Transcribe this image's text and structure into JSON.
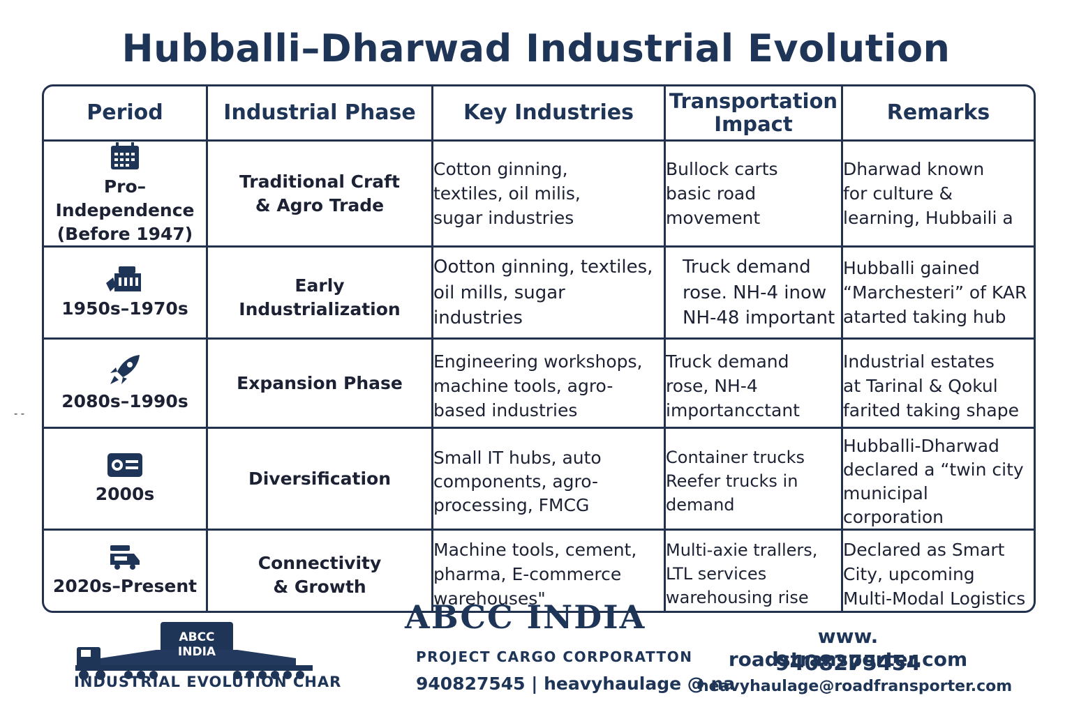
{
  "title": "Hubballi–Dharwad Industrial Evolution",
  "table": {
    "headers": [
      "Period",
      "Industrial Phase",
      "Key Industries",
      "Transportation\nImpact",
      "Remarks"
    ],
    "rows": [
      {
        "icon": "calendar-icon",
        "period": "Pro–Independence\n(Before 1947)",
        "phase": "Traditional Craft\n& Agro Trade",
        "industries": "Cotton ginning,\ntextiles, oil milis,\nsugar industries",
        "transport": "Bullock carts\nbasic road\nmovement",
        "remarks": "Dharwad known\nfor culture &\nlearning, Hubbaili a"
      },
      {
        "icon": "factory-icon",
        "period": "1950s–1970s",
        "phase": "Early\nIndustrialization",
        "industries": "Ootton ginning, textiles,\noil mills, sugar\nindustries",
        "transport": "Truck demand\nrose. NH-4 inow\nNH-48 important",
        "remarks": "Hubballi gained\n“Marchesteri” of KAR\natarted taking hub"
      },
      {
        "icon": "rocket-icon",
        "period": "2080s–1990s",
        "phase": "Expansion Phase",
        "industries": "Engineering workshops,\nmachine tools, agro-\nbased industries",
        "transport": "Truck demand\nrose, NH-4\nimportancctant",
        "remarks": "Industrial estates\nat Tarinal & Qokul\nfarited taking shape"
      },
      {
        "icon": "id-card-icon",
        "period": "2000s",
        "phase": "Diversification",
        "industries": "Small IT hubs, auto\ncomponents, agro-\nprocessing, FMCG",
        "transport": "Container trucks\nReefer trucks in\ndemand",
        "remarks": "Hubballi-Dharwad\ndeclared a “twin city\nmunicipal corporation"
      },
      {
        "icon": "truck-icon",
        "period": "2020s–Present",
        "phase": "Connectivity\n& Growth",
        "industries": "Machine tools, cement,\npharma, E-commerce\nwarehouses\"",
        "transport": "Multi-axie trallers,\nLTL services\nwarehousing rise",
        "remarks": "Declared as  Smart\nCity, upcoming\nMulti-Modal Logistics"
      }
    ]
  },
  "side_mark": "- -",
  "logo": {
    "text_line1": "ABCC",
    "text_line2": "INDIA",
    "caption": "INDUSTRIAL EVOLUTION CHAR"
  },
  "brand": {
    "name": "ABCC INDIA",
    "subtitle": "PROJECT CARGO CORPORATTON",
    "contact": "940827545 | heavyhaulage @ na"
  },
  "contact": {
    "website": "www. roadstransporter.com",
    "phone": "9408275454",
    "email": "heavyhaulage@roadfransporter.com"
  },
  "colors": {
    "navy": "#1e3557",
    "border": "#22324e"
  }
}
